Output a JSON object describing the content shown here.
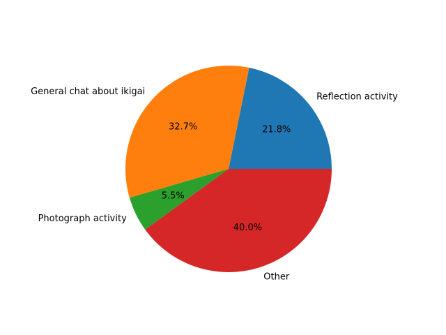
{
  "chart_data": {
    "type": "pie",
    "title": "",
    "categories": [
      "Reflection activity",
      "General chat about ikigai",
      "Photograph activity",
      "Other"
    ],
    "values": [
      21.8,
      32.7,
      5.5,
      40.0
    ],
    "percent_labels": [
      "21.8%",
      "32.7%",
      "5.5%",
      "40.0%"
    ],
    "colors": [
      "#1f77b4",
      "#ff7f0e",
      "#2ca02c",
      "#d62728"
    ],
    "start_angle_deg": 0,
    "direction": "counterclockwise",
    "legend": "none"
  }
}
